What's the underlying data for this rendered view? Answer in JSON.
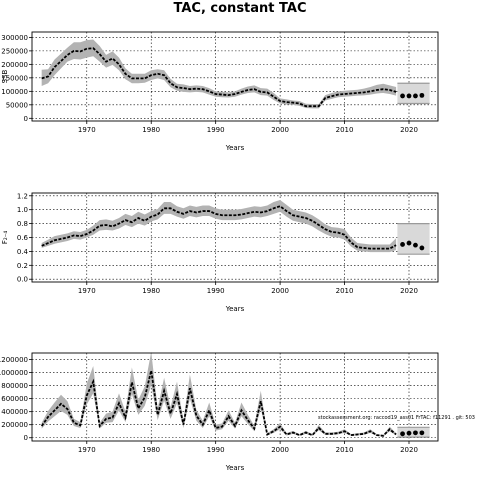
{
  "title": "TAC, constant TAC",
  "chart_data": [
    {
      "type": "line",
      "xlabel": "Years",
      "ylabel": "SSB",
      "xlim": [
        1961.5,
        2024.5
      ],
      "ylim": [
        -10000,
        320000
      ],
      "xticks": [
        1970,
        1980,
        1990,
        2000,
        2010,
        2020
      ],
      "yticks": [
        0,
        50000,
        100000,
        150000,
        200000,
        250000,
        300000
      ],
      "ytick_labels": [
        "0",
        "50000",
        "100000",
        "150000",
        "200000",
        "250000",
        "300000"
      ],
      "grid": true,
      "series": [
        {
          "x": [
            1963,
            1964,
            1965,
            1966,
            1967,
            1968,
            1969,
            1970,
            1971,
            1972,
            1973,
            1974,
            1975,
            1976,
            1977,
            1978,
            1979,
            1980,
            1981,
            1982,
            1983,
            1984,
            1985,
            1986,
            1987,
            1988,
            1989,
            1990,
            1991,
            1992,
            1993,
            1994,
            1995,
            1996,
            1997,
            1998,
            1999,
            2000,
            2001,
            2002,
            2003,
            2004,
            2005,
            2006,
            2007,
            2008,
            2009,
            2010,
            2011,
            2012,
            2013,
            2014,
            2015,
            2016,
            2017,
            2018
          ],
          "values": [
            148000,
            155000,
            190000,
            212000,
            235000,
            250000,
            248000,
            258000,
            260000,
            238000,
            210000,
            222000,
            200000,
            165000,
            148000,
            148000,
            148000,
            160000,
            165000,
            160000,
            130000,
            115000,
            112000,
            108000,
            110000,
            108000,
            100000,
            90000,
            88000,
            86000,
            90000,
            98000,
            105000,
            108000,
            98000,
            96000,
            80000,
            64000,
            60000,
            58000,
            55000,
            45000,
            45000,
            45000,
            75000,
            82000,
            88000,
            90000,
            92000,
            94000,
            96000,
            100000,
            105000,
            108000,
            105000,
            98000
          ],
          "lower": [
            120000,
            130000,
            160000,
            185000,
            210000,
            220000,
            218000,
            225000,
            230000,
            210000,
            188000,
            198000,
            178000,
            145000,
            130000,
            130000,
            132000,
            142000,
            148000,
            142000,
            115000,
            102000,
            98000,
            96000,
            98000,
            96000,
            88000,
            80000,
            78000,
            77000,
            80000,
            88000,
            94000,
            96000,
            86000,
            84000,
            68000,
            55000,
            51000,
            50000,
            46000,
            38000,
            37000,
            37000,
            66000,
            72000,
            78000,
            80000,
            82000,
            84000,
            85000,
            88000,
            92000,
            94000,
            90000,
            84000
          ],
          "upper": [
            180000,
            182000,
            218000,
            240000,
            262000,
            282000,
            282000,
            290000,
            292000,
            268000,
            235000,
            248000,
            225000,
            185000,
            165000,
            165000,
            165000,
            178000,
            182000,
            178000,
            146000,
            128000,
            126000,
            120000,
            122000,
            120000,
            112000,
            100000,
            98000,
            96000,
            100000,
            110000,
            118000,
            122000,
            112000,
            110000,
            94000,
            74000,
            70000,
            66000,
            64000,
            54000,
            53000,
            53000,
            86000,
            94000,
            100000,
            102000,
            104000,
            106000,
            110000,
            116000,
            124000,
            128000,
            122000,
            116000
          ]
        }
      ],
      "projection": {
        "x": [
          2019,
          2020,
          2021,
          2022
        ],
        "values": [
          83000,
          83000,
          83000,
          85000
        ],
        "lower": 55000,
        "upper": 130000
      }
    },
    {
      "type": "line",
      "xlabel": "Years",
      "ylabel": "F₂₋₄",
      "xlim": [
        1961.5,
        2024.5
      ],
      "ylim": [
        -0.04,
        1.24
      ],
      "xticks": [
        1970,
        1980,
        1990,
        2000,
        2010,
        2020
      ],
      "yticks": [
        0,
        0.2,
        0.4,
        0.6,
        0.8,
        1.0,
        1.2
      ],
      "ytick_labels": [
        "0.0",
        "0.2",
        "0.4",
        "0.6",
        "0.8",
        "1.0",
        "1.2"
      ],
      "grid": true,
      "series": [
        {
          "x": [
            1963,
            1964,
            1965,
            1966,
            1967,
            1968,
            1969,
            1970,
            1971,
            1972,
            1973,
            1974,
            1975,
            1976,
            1977,
            1978,
            1979,
            1980,
            1981,
            1982,
            1983,
            1984,
            1985,
            1986,
            1987,
            1988,
            1989,
            1990,
            1991,
            1992,
            1993,
            1994,
            1995,
            1996,
            1997,
            1998,
            1999,
            2000,
            2001,
            2002,
            2003,
            2004,
            2005,
            2006,
            2007,
            2008,
            2009,
            2010,
            2011,
            2012,
            2013,
            2014,
            2015,
            2016,
            2017,
            2018
          ],
          "values": [
            0.48,
            0.52,
            0.56,
            0.58,
            0.6,
            0.63,
            0.62,
            0.65,
            0.7,
            0.77,
            0.78,
            0.76,
            0.8,
            0.85,
            0.82,
            0.88,
            0.84,
            0.9,
            0.93,
            1.02,
            1.02,
            0.97,
            0.94,
            0.98,
            0.96,
            0.98,
            0.98,
            0.94,
            0.92,
            0.92,
            0.92,
            0.93,
            0.95,
            0.97,
            0.96,
            0.98,
            1.02,
            1.05,
            0.98,
            0.92,
            0.9,
            0.88,
            0.84,
            0.78,
            0.72,
            0.68,
            0.67,
            0.64,
            0.53,
            0.46,
            0.45,
            0.44,
            0.44,
            0.44,
            0.44,
            0.49
          ],
          "lower": [
            0.45,
            0.48,
            0.51,
            0.53,
            0.55,
            0.58,
            0.57,
            0.6,
            0.64,
            0.7,
            0.71,
            0.7,
            0.73,
            0.78,
            0.75,
            0.8,
            0.77,
            0.83,
            0.86,
            0.94,
            0.94,
            0.9,
            0.87,
            0.91,
            0.89,
            0.91,
            0.91,
            0.87,
            0.85,
            0.85,
            0.85,
            0.86,
            0.88,
            0.9,
            0.89,
            0.91,
            0.94,
            0.97,
            0.9,
            0.84,
            0.82,
            0.8,
            0.76,
            0.7,
            0.65,
            0.61,
            0.6,
            0.57,
            0.47,
            0.41,
            0.4,
            0.39,
            0.39,
            0.39,
            0.39,
            0.42
          ],
          "upper": [
            0.52,
            0.57,
            0.62,
            0.64,
            0.66,
            0.69,
            0.68,
            0.71,
            0.77,
            0.85,
            0.86,
            0.84,
            0.88,
            0.94,
            0.91,
            0.97,
            0.93,
            0.98,
            1.01,
            1.11,
            1.11,
            1.05,
            1.02,
            1.06,
            1.04,
            1.06,
            1.06,
            1.02,
            1.0,
            1.0,
            1.0,
            1.01,
            1.03,
            1.05,
            1.04,
            1.06,
            1.11,
            1.14,
            1.07,
            1.0,
            0.98,
            0.96,
            0.92,
            0.86,
            0.79,
            0.75,
            0.74,
            0.72,
            0.6,
            0.52,
            0.51,
            0.5,
            0.5,
            0.5,
            0.5,
            0.59
          ]
        }
      ],
      "projection": {
        "x": [
          2019,
          2020,
          2021,
          2022
        ],
        "values": [
          0.5,
          0.52,
          0.49,
          0.45
        ],
        "lower": 0.36,
        "upper": 0.8
      }
    },
    {
      "type": "line",
      "xlabel": "Years",
      "ylabel": "",
      "xlim": [
        1961.5,
        2024.5
      ],
      "ylim": [
        -50000,
        1300000
      ],
      "xticks": [
        1970,
        1980,
        1990,
        2000,
        2010,
        2020
      ],
      "yticks": [
        0,
        200000,
        400000,
        600000,
        800000,
        1000000,
        1200000
      ],
      "ytick_labels": [
        "0",
        "200000",
        "400000",
        "600000",
        "800000",
        "1000000",
        "1200000"
      ],
      "grid": true,
      "annotation": "stockassessment.org: raccod19_ass01 FrTAC: f11291 . git: 503",
      "series": [
        {
          "x": [
            1963,
            1964,
            1965,
            1966,
            1967,
            1968,
            1969,
            1970,
            1971,
            1972,
            1973,
            1974,
            1975,
            1976,
            1977,
            1978,
            1979,
            1980,
            1981,
            1982,
            1983,
            1984,
            1985,
            1986,
            1987,
            1988,
            1989,
            1990,
            1991,
            1992,
            1993,
            1994,
            1995,
            1996,
            1997,
            1998,
            1999,
            2000,
            2001,
            2002,
            2003,
            2004,
            2005,
            2006,
            2007,
            2008,
            2009,
            2010,
            2011,
            2012,
            2013,
            2014,
            2015,
            2016,
            2017,
            2018
          ],
          "values": [
            180000,
            320000,
            420000,
            520000,
            440000,
            230000,
            190000,
            650000,
            860000,
            180000,
            290000,
            310000,
            530000,
            310000,
            850000,
            450000,
            620000,
            1030000,
            350000,
            720000,
            370000,
            670000,
            200000,
            760000,
            340000,
            200000,
            420000,
            150000,
            170000,
            330000,
            180000,
            420000,
            270000,
            140000,
            560000,
            50000,
            100000,
            170000,
            50000,
            80000,
            40000,
            80000,
            40000,
            150000,
            60000,
            60000,
            70000,
            100000,
            40000,
            50000,
            60000,
            100000,
            40000,
            30000,
            130000,
            50000
          ],
          "lower": [
            140000,
            250000,
            330000,
            410000,
            350000,
            180000,
            150000,
            510000,
            680000,
            140000,
            230000,
            240000,
            420000,
            240000,
            670000,
            350000,
            490000,
            810000,
            270000,
            570000,
            290000,
            530000,
            150000,
            600000,
            260000,
            150000,
            330000,
            110000,
            130000,
            260000,
            140000,
            330000,
            210000,
            100000,
            440000,
            35000,
            75000,
            130000,
            35000,
            60000,
            28000,
            60000,
            28000,
            115000,
            44000,
            44000,
            52000,
            75000,
            28000,
            36000,
            44000,
            75000,
            28000,
            20000,
            100000,
            36000
          ],
          "upper": [
            230000,
            410000,
            540000,
            660000,
            560000,
            290000,
            240000,
            830000,
            1100000,
            230000,
            370000,
            400000,
            680000,
            400000,
            1080000,
            580000,
            790000,
            1320000,
            450000,
            920000,
            470000,
            860000,
            260000,
            970000,
            430000,
            260000,
            540000,
            200000,
            220000,
            420000,
            230000,
            540000,
            350000,
            180000,
            720000,
            70000,
            130000,
            220000,
            70000,
            105000,
            55000,
            105000,
            55000,
            195000,
            80000,
            80000,
            92000,
            130000,
            55000,
            68000,
            80000,
            130000,
            55000,
            42000,
            170000,
            68000
          ]
        }
      ],
      "projection": {
        "x": [
          2019,
          2020,
          2021,
          2022
        ],
        "values": [
          60000,
          70000,
          75000,
          75000
        ],
        "lower": 10000,
        "upper": 160000
      }
    }
  ]
}
